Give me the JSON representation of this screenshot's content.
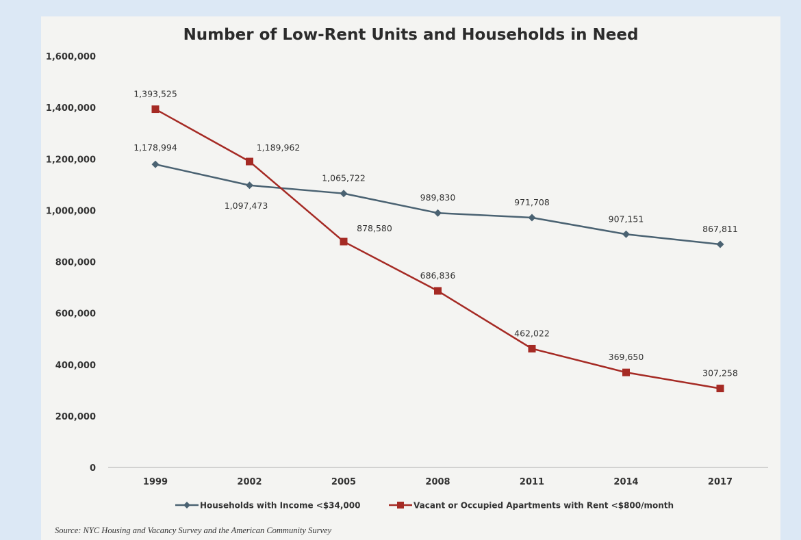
{
  "colors": {
    "background": "#dce8f5",
    "panel": "#f4f4f2",
    "households": "#4a6272",
    "apartments": "#a52a24",
    "axis": "#b0b0b0"
  },
  "source": "Source: NYC Housing and Vacancy Survey and the American Community Survey",
  "chart_data": {
    "type": "line",
    "title": "Number of Low-Rent Units and Households in Need",
    "xlabel": "",
    "ylabel": "",
    "categories": [
      "1999",
      "2002",
      "2005",
      "2008",
      "2011",
      "2014",
      "2017"
    ],
    "ylim": [
      0,
      1600000
    ],
    "yticks": [
      0,
      200000,
      400000,
      600000,
      800000,
      1000000,
      1200000,
      1400000,
      1600000
    ],
    "ytick_labels": [
      "0",
      "200,000",
      "400,000",
      "600,000",
      "800,000",
      "1,000,000",
      "1,200,000",
      "1,400,000",
      "1,600,000"
    ],
    "grid": false,
    "legend_position": "bottom",
    "series": [
      {
        "name": "Households with Income <$34,000",
        "marker": "diamond",
        "color": "#4a6272",
        "values": [
          1178994,
          1097473,
          1065722,
          989830,
          971708,
          907151,
          867811
        ],
        "labels": [
          "1,178,994",
          "1,097,473",
          "1,065,722",
          "989,830",
          "971,708",
          "907,151",
          "867,811"
        ]
      },
      {
        "name": "Vacant or Occupied Apartments with Rent <$800/month",
        "marker": "square",
        "color": "#a52a24",
        "values": [
          1393525,
          1189962,
          878580,
          686836,
          462022,
          369650,
          307258
        ],
        "labels": [
          "1,393,525",
          "1,189,962",
          "878,580",
          "686,836",
          "462,022",
          "369,650",
          "307,258"
        ]
      }
    ]
  }
}
